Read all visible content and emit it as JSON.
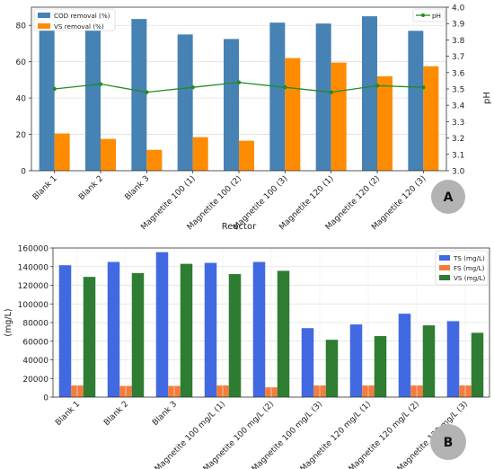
{
  "chart_data": [
    {
      "type": "bar",
      "panel_label": "A",
      "categories": [
        "Blank 1",
        "Blank 2",
        "Blank 3",
        "Magnetite 100 (1)",
        "Magnetite 100 (2)",
        "Magnetite 100 (3)",
        "Magnetite 120 (1)",
        "Magnetite 120 (2)",
        "Magnetite 120 (3)"
      ],
      "xlabel": "Reactor",
      "ylabel_left": "",
      "ylabel_right": "pH",
      "ylim_left": [
        0,
        90
      ],
      "yticks_left": [
        "0",
        "20",
        "40",
        "60",
        "80"
      ],
      "ylim_right": [
        3.0,
        4.0
      ],
      "yticks_right": [
        "3.0",
        "3.1",
        "3.2",
        "3.3",
        "3.4",
        "3.5",
        "3.6",
        "3.7",
        "3.8",
        "3.9",
        "4.0"
      ],
      "grid": true,
      "series": [
        {
          "name": "COD removal (%)",
          "kind": "bar",
          "axis": "left",
          "color": "#4682b4",
          "values": [
            83.5,
            81,
            83.5,
            75,
            72.5,
            81.5,
            81,
            85,
            77
          ]
        },
        {
          "name": "VS removal (%)",
          "kind": "bar",
          "axis": "left",
          "color": "#ff8c00",
          "values": [
            20.5,
            17.5,
            11.5,
            18.5,
            16.5,
            62,
            59.5,
            52,
            57.5
          ]
        },
        {
          "name": "pH",
          "kind": "line",
          "axis": "right",
          "color": "#228b22",
          "values": [
            3.5,
            3.53,
            3.48,
            3.51,
            3.54,
            3.51,
            3.48,
            3.52,
            3.51
          ]
        }
      ],
      "legend": {
        "left": [
          "COD removal (%)",
          "VS removal (%)"
        ],
        "right": [
          "pH"
        ],
        "left_placement": "top-left",
        "right_placement": "top-right"
      }
    },
    {
      "type": "bar",
      "panel_label": "B",
      "categories": [
        "Blank 1",
        "Blank 2",
        "Blank 3",
        "Magnetite 100 mg/L (1)",
        "Magnetite 100 mg/L (2)",
        "Magnetite 100 mg/L (3)",
        "Magnetite 120 mg/L (1)",
        "Magnetite 120 mg/L (2)",
        "Magnetite 120 mg/L (3)"
      ],
      "xlabel": "",
      "ylabel": "(mg/L)",
      "ylim": [
        0,
        160000
      ],
      "yticks": [
        "0",
        "20000",
        "40000",
        "60000",
        "80000",
        "100000",
        "120000",
        "140000",
        "160000"
      ],
      "grid": true,
      "series": [
        {
          "name": "TS (mg/L)",
          "color": "#4169e1",
          "values": [
            141500,
            145000,
            155500,
            144000,
            145000,
            74000,
            78000,
            89500,
            81500
          ]
        },
        {
          "name": "FS (mg/L)",
          "color": "#f47c3c",
          "values": [
            12500,
            12000,
            12000,
            12500,
            10500,
            12500,
            12500,
            12500,
            12500
          ]
        },
        {
          "name": "VS (mg/L)",
          "color": "#2e7d32",
          "values": [
            129000,
            133000,
            143000,
            132000,
            135500,
            61500,
            65500,
            77000,
            69000
          ]
        }
      ],
      "legend": {
        "placement": "top-right"
      }
    }
  ]
}
